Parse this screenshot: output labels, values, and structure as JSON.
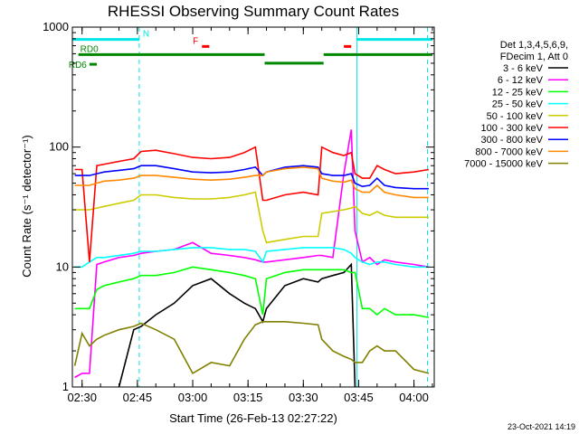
{
  "chart_data": {
    "type": "line",
    "title": "RHESSI Observing Summary Count Rates",
    "xlabel": "Start Time (26-Feb-13 02:27:22)",
    "ylabel": "Count Rate (s⁻¹ detector⁻¹)",
    "ylog": true,
    "ylim": [
      1,
      1000
    ],
    "xlim": [
      "02:27:22",
      "04:05:30"
    ],
    "x_ticks": [
      "02:30",
      "02:45",
      "03:00",
      "03:15",
      "03:30",
      "03:45",
      "04:00"
    ],
    "y_ticks": [
      "1",
      "10",
      "100",
      "1000"
    ],
    "legend_header": [
      "Det 1,3,4,5,6,9,",
      "FDecim 1, Att 0"
    ],
    "grid": false,
    "legend_position": "right",
    "date_stamp": "23-Oct-2021 14:19",
    "flags": [
      {
        "label": "N",
        "color": "#00e5e5",
        "segments": [
          [
            "02:27:22",
            "02:45:30"
          ],
          [
            "03:44:30",
            "04:05:00"
          ]
        ],
        "level": 790
      },
      {
        "label": "F",
        "color": "#ff0000",
        "segments": [
          [
            "03:02:30",
            "03:04:30"
          ],
          [
            "03:41:00",
            "03:43:00"
          ]
        ],
        "level": 690
      },
      {
        "label": "RD0",
        "color": "#008800",
        "segments": [
          [
            "02:29:00",
            "03:19:30"
          ],
          [
            "03:35:30",
            "04:05:00"
          ]
        ],
        "level": 590
      },
      {
        "label": "",
        "color": "#008800",
        "segments": [
          [
            "03:19:30",
            "03:35:30"
          ]
        ],
        "level": 500
      },
      {
        "label": "RD6",
        "color": "#008800",
        "segments": [
          [
            "02:32:00",
            "02:34:00"
          ]
        ],
        "level": 490
      }
    ],
    "vlines": [
      {
        "x": "02:27:22",
        "style": "solid",
        "color": "#00e5e5"
      },
      {
        "x": "02:45:30",
        "style": "dashed",
        "color": "#00e5e5"
      },
      {
        "x": "03:44:30",
        "style": "solid",
        "color": "#00e5e5"
      },
      {
        "x": "04:03:40",
        "style": "dashed",
        "color": "#00e5e5"
      }
    ],
    "x": [
      "02:28",
      "02:30",
      "02:32",
      "02:34",
      "02:36",
      "02:40",
      "02:44",
      "02:46",
      "02:50",
      "02:55",
      "03:00",
      "03:05",
      "03:10",
      "03:14",
      "03:17",
      "03:19",
      "03:20",
      "03:25",
      "03:30",
      "03:34",
      "03:35",
      "03:38",
      "03:41",
      "03:43",
      "03:44",
      "03:46",
      "03:48",
      "03:50",
      "03:52",
      "03:55",
      "04:00",
      "04:04"
    ],
    "series": [
      {
        "name": "3 - 6 keV",
        "color": "#000000",
        "values": [
          null,
          null,
          null,
          null,
          null,
          1.0,
          3.0,
          3.2,
          4.0,
          5.0,
          7.0,
          8.0,
          6.0,
          5.0,
          4.5,
          3.5,
          4.5,
          7.0,
          8.0,
          7.5,
          8.0,
          8.5,
          9.0,
          10.5,
          1.0,
          null,
          null,
          null,
          null,
          null,
          null,
          null
        ]
      },
      {
        "name": "6 - 12 keV",
        "color": "#ff00ff",
        "values": [
          1.2,
          1.3,
          1.3,
          10.5,
          11,
          12,
          12.5,
          13,
          13.5,
          14,
          16,
          13,
          12.5,
          12,
          11.5,
          11,
          11,
          11.5,
          12,
          12.5,
          12.5,
          12,
          60,
          140,
          20,
          11,
          12,
          10.5,
          11.5,
          11,
          10.5,
          10
        ]
      },
      {
        "name": "12 - 25 keV",
        "color": "#00ff00",
        "values": [
          4.5,
          4.5,
          4.5,
          6.5,
          7.0,
          7.5,
          8.0,
          8.5,
          8.5,
          9.0,
          10,
          9.5,
          9.0,
          8.5,
          8.0,
          4.0,
          8.0,
          9.0,
          9.5,
          9.5,
          9.5,
          9.5,
          9.5,
          9.0,
          9.0,
          4.5,
          4.5,
          4.0,
          4.5,
          4.0,
          4.0,
          3.8
        ]
      },
      {
        "name": "25 - 50 keV",
        "color": "#00ffff",
        "values": [
          10,
          10,
          11,
          12,
          12,
          12.5,
          13,
          13.5,
          13.5,
          14,
          14.5,
          14.5,
          14,
          14,
          13.5,
          11,
          13.5,
          14,
          14.5,
          14.5,
          14.5,
          14.5,
          14,
          13,
          12,
          11,
          10.5,
          11,
          11,
          10.5,
          10,
          10
        ]
      },
      {
        "name": "50 - 100 keV",
        "color": "#cccc00",
        "values": [
          30,
          30,
          30,
          31,
          32,
          34,
          36,
          40,
          40,
          38,
          37,
          37,
          38,
          40,
          42,
          20,
          16,
          17,
          18,
          18,
          28,
          29,
          30,
          31,
          32,
          28,
          27,
          29,
          27,
          26,
          26,
          26
        ]
      },
      {
        "name": "100 - 300 keV",
        "color": "#ff0000",
        "values": [
          65,
          65,
          11,
          70,
          72,
          76,
          80,
          92,
          94,
          88,
          82,
          80,
          82,
          90,
          100,
          36,
          36,
          40,
          42,
          40,
          100,
          90,
          85,
          90,
          60,
          55,
          55,
          70,
          65,
          60,
          62,
          65
        ]
      },
      {
        "name": "300 - 800 keV",
        "color": "#0000ff",
        "values": [
          58,
          58,
          58,
          60,
          62,
          64,
          66,
          70,
          70,
          66,
          62,
          61,
          62,
          65,
          68,
          58,
          62,
          68,
          70,
          68,
          60,
          58,
          58,
          60,
          50,
          47,
          48,
          55,
          48,
          46,
          45,
          45
        ]
      },
      {
        "name": "800 - 7000 keV",
        "color": "#ff8800",
        "values": [
          48,
          48,
          48,
          50,
          52,
          53,
          55,
          58,
          58,
          56,
          54,
          53,
          54,
          56,
          58,
          58,
          62,
          66,
          68,
          66,
          55,
          52,
          51,
          53,
          45,
          42,
          42,
          48,
          42,
          40,
          38,
          38
        ]
      },
      {
        "name": "7000 - 15000 keV",
        "color": "#808000",
        "values": [
          1.5,
          2.8,
          2.2,
          2.5,
          2.7,
          3.0,
          3.2,
          3.4,
          3.0,
          2.5,
          1.3,
          1.6,
          1.5,
          2.5,
          3.3,
          3.5,
          3.5,
          3.5,
          3.4,
          3.3,
          2.5,
          2.0,
          1.8,
          1.7,
          1.6,
          1.6,
          2.0,
          2.2,
          2.0,
          2.0,
          1.4,
          1.3
        ]
      }
    ]
  }
}
